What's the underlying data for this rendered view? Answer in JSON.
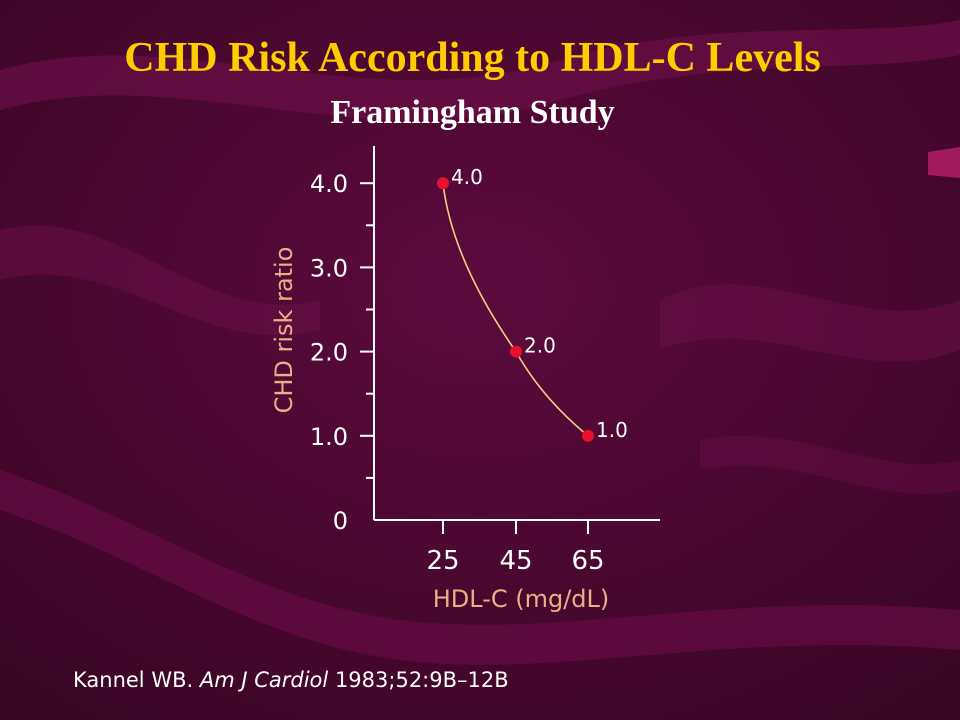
{
  "slide": {
    "title": "CHD Risk According to HDL-C Levels",
    "subtitle": "Framingham Study",
    "citation": {
      "authors": "Kannel WB.",
      "journal": "Am J Cardiol",
      "details": "1983;52:9B–12B"
    }
  },
  "colors": {
    "background": "#4a0830",
    "title": "#ffcc00",
    "axis_label": "#e8b088",
    "text": "#ffffff",
    "point": "#e8102a",
    "curve": "#f0d080"
  },
  "chart_data": {
    "type": "line",
    "x": [
      25,
      45,
      65
    ],
    "series": [
      {
        "values": [
          4.0,
          2.0,
          1.0
        ],
        "point_labels": [
          "4.0",
          "2.0",
          "1.0"
        ]
      }
    ],
    "xlabel": "HDL-C (mg/dL)",
    "ylabel": "CHD risk ratio",
    "x_tick_labels": [
      "25",
      "45",
      "65"
    ],
    "y_ticks": [
      0,
      1,
      2,
      3,
      4
    ],
    "y_tick_labels": [
      "0",
      "1.0",
      "2.0",
      "3.0",
      "4.0"
    ],
    "ylim": [
      0,
      4.5
    ],
    "grid": false
  }
}
